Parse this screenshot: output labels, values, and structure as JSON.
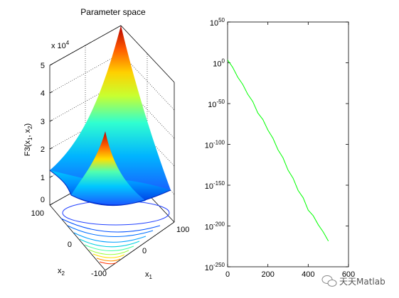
{
  "chart_data": [
    {
      "type": "surface",
      "title": "Parameter space",
      "zlabel_fn": "F3(",
      "zlabel_x": "x",
      "zlabel_sub1": "1",
      "zlabel_sep": ", ",
      "zlabel_sub2": "2",
      "zlabel_close": ")",
      "xlabel": "x",
      "xlabel_sub": "1",
      "ylabel": "x",
      "ylabel_sub": "2",
      "x_ticks": [
        "-100",
        "0",
        "100"
      ],
      "y_ticks": [
        "-100",
        "0",
        "100"
      ],
      "z_ticks": [
        "0",
        "1",
        "2",
        "3",
        "4",
        "5"
      ],
      "z_multiplier_base": "x 10",
      "z_multiplier_exp": "4",
      "xlim": [
        -100,
        100
      ],
      "ylim": [
        -100,
        100
      ],
      "zlim": [
        0,
        50000
      ],
      "colormap": "jet",
      "grid": true,
      "contour_projection": true
    },
    {
      "type": "line",
      "yscale": "log",
      "x_ticks": [
        "0",
        "200",
        "400",
        "600"
      ],
      "y_ticks": [
        {
          "base": "10",
          "exp": "50"
        },
        {
          "base": "10",
          "exp": "0"
        },
        {
          "base": "10",
          "exp": "-50"
        },
        {
          "base": "10",
          "exp": "-100"
        },
        {
          "base": "10",
          "exp": "-150"
        },
        {
          "base": "10",
          "exp": "-200"
        },
        {
          "base": "10",
          "exp": "-250"
        }
      ],
      "xlim": [
        0,
        600
      ],
      "ylim_exponent": [
        -250,
        50
      ],
      "series": [
        {
          "color": "#00ff00",
          "x": [
            0,
            25,
            50,
            75,
            100,
            125,
            150,
            175,
            200,
            225,
            250,
            275,
            300,
            325,
            350,
            375,
            400,
            425,
            450,
            475,
            500
          ],
          "log10_y": [
            4,
            -6,
            -17,
            -27,
            -38,
            -48,
            -61,
            -70,
            -82,
            -93,
            -106,
            -117,
            -131,
            -142,
            -156,
            -166,
            -180,
            -188,
            -198,
            -208,
            -218
          ]
        }
      ]
    }
  ],
  "watermark": {
    "text": "天天Matlab",
    "icon": "wechat-icon"
  }
}
